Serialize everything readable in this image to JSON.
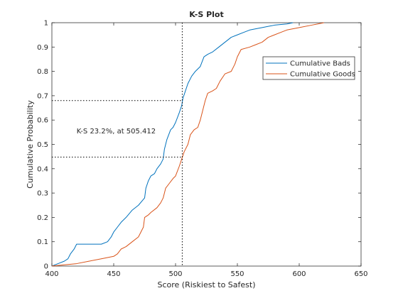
{
  "chart_data": {
    "type": "line",
    "title": "K-S Plot",
    "xlabel": "Score (Riskiest to Safest)",
    "ylabel": "Cumulative Probability",
    "xlim": [
      400,
      650
    ],
    "ylim": [
      0,
      1
    ],
    "x_ticks": [
      400,
      450,
      500,
      550,
      600,
      650
    ],
    "y_ticks": [
      0,
      0.1,
      0.2,
      0.3,
      0.4,
      0.5,
      0.6,
      0.7,
      0.8,
      0.9,
      1
    ],
    "x_tick_labels": [
      "400",
      "450",
      "500",
      "550",
      "600",
      "650"
    ],
    "y_tick_labels": [
      "0",
      "0.1",
      "0.2",
      "0.3",
      "0.4",
      "0.5",
      "0.6",
      "0.7",
      "0.8",
      "0.9",
      "1"
    ],
    "legend": {
      "placement": "top-right",
      "entries": [
        "Cumulative Bads",
        "Cumulative Goods"
      ]
    },
    "grid": false,
    "annotation": {
      "text": "K-S 23.2%, at 505.412",
      "x": 420,
      "y": 0.555
    },
    "ks_line": {
      "x": 505.412,
      "y_bads": 0.68,
      "y_goods": 0.448
    },
    "series": [
      {
        "name": "Cumulative Bads",
        "color": "#0072BD",
        "points": [
          [
            400,
            0
          ],
          [
            405,
            0.01
          ],
          [
            410,
            0.02
          ],
          [
            413,
            0.03
          ],
          [
            415,
            0.05
          ],
          [
            418,
            0.07
          ],
          [
            420,
            0.09
          ],
          [
            425,
            0.09
          ],
          [
            430,
            0.09
          ],
          [
            435,
            0.09
          ],
          [
            440,
            0.09
          ],
          [
            445,
            0.1
          ],
          [
            448,
            0.12
          ],
          [
            450,
            0.14
          ],
          [
            453,
            0.16
          ],
          [
            456,
            0.18
          ],
          [
            460,
            0.2
          ],
          [
            465,
            0.23
          ],
          [
            470,
            0.25
          ],
          [
            475,
            0.28
          ],
          [
            476,
            0.32
          ],
          [
            478,
            0.35
          ],
          [
            480,
            0.37
          ],
          [
            483,
            0.38
          ],
          [
            485,
            0.4
          ],
          [
            488,
            0.42
          ],
          [
            490,
            0.44
          ],
          [
            491,
            0.48
          ],
          [
            493,
            0.52
          ],
          [
            496,
            0.56
          ],
          [
            498,
            0.57
          ],
          [
            500,
            0.59
          ],
          [
            503,
            0.63
          ],
          [
            505,
            0.66
          ],
          [
            506,
            0.69
          ],
          [
            508,
            0.72
          ],
          [
            510,
            0.75
          ],
          [
            513,
            0.78
          ],
          [
            516,
            0.8
          ],
          [
            520,
            0.82
          ],
          [
            523,
            0.86
          ],
          [
            526,
            0.87
          ],
          [
            530,
            0.88
          ],
          [
            535,
            0.9
          ],
          [
            540,
            0.92
          ],
          [
            545,
            0.94
          ],
          [
            550,
            0.95
          ],
          [
            555,
            0.96
          ],
          [
            560,
            0.97
          ],
          [
            570,
            0.98
          ],
          [
            580,
            0.99
          ],
          [
            590,
            0.995
          ],
          [
            595,
            1
          ]
        ]
      },
      {
        "name": "Cumulative Goods",
        "color": "#D95319",
        "points": [
          [
            400,
            0
          ],
          [
            410,
            0.005
          ],
          [
            420,
            0.01
          ],
          [
            430,
            0.02
          ],
          [
            440,
            0.03
          ],
          [
            450,
            0.04
          ],
          [
            453,
            0.05
          ],
          [
            456,
            0.07
          ],
          [
            460,
            0.08
          ],
          [
            465,
            0.1
          ],
          [
            470,
            0.12
          ],
          [
            472,
            0.14
          ],
          [
            474,
            0.16
          ],
          [
            475,
            0.2
          ],
          [
            478,
            0.21
          ],
          [
            480,
            0.22
          ],
          [
            485,
            0.24
          ],
          [
            488,
            0.26
          ],
          [
            490,
            0.28
          ],
          [
            492,
            0.32
          ],
          [
            495,
            0.34
          ],
          [
            498,
            0.36
          ],
          [
            500,
            0.37
          ],
          [
            503,
            0.41
          ],
          [
            505,
            0.44
          ],
          [
            507,
            0.47
          ],
          [
            510,
            0.5
          ],
          [
            512,
            0.54
          ],
          [
            515,
            0.56
          ],
          [
            518,
            0.57
          ],
          [
            520,
            0.6
          ],
          [
            522,
            0.64
          ],
          [
            524,
            0.68
          ],
          [
            526,
            0.71
          ],
          [
            530,
            0.72
          ],
          [
            533,
            0.73
          ],
          [
            536,
            0.76
          ],
          [
            540,
            0.79
          ],
          [
            545,
            0.8
          ],
          [
            548,
            0.83
          ],
          [
            550,
            0.86
          ],
          [
            553,
            0.89
          ],
          [
            560,
            0.9
          ],
          [
            565,
            0.91
          ],
          [
            570,
            0.92
          ],
          [
            575,
            0.94
          ],
          [
            580,
            0.95
          ],
          [
            585,
            0.96
          ],
          [
            590,
            0.97
          ],
          [
            600,
            0.98
          ],
          [
            610,
            0.99
          ],
          [
            615,
            0.995
          ],
          [
            620,
            1
          ]
        ]
      }
    ]
  }
}
